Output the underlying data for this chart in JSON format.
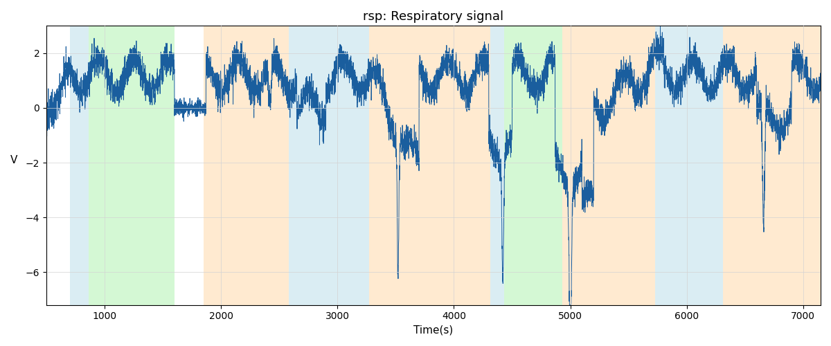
{
  "title": "rsp: Respiratory signal",
  "xlabel": "Time(s)",
  "ylabel": "V",
  "xlim": [
    500,
    7150
  ],
  "ylim": [
    -7.2,
    3.0
  ],
  "line_color": "#1a5e9e",
  "line_width": 0.7,
  "grid": true,
  "background_color": "white",
  "bands": [
    {
      "xmin": 700,
      "xmax": 860,
      "color": "#add8e6",
      "alpha": 0.45
    },
    {
      "xmin": 860,
      "xmax": 1600,
      "color": "#90ee90",
      "alpha": 0.38
    },
    {
      "xmin": 1850,
      "xmax": 2580,
      "color": "#ffd59e",
      "alpha": 0.48
    },
    {
      "xmin": 2580,
      "xmax": 3270,
      "color": "#add8e6",
      "alpha": 0.45
    },
    {
      "xmin": 3270,
      "xmax": 4310,
      "color": "#ffd59e",
      "alpha": 0.48
    },
    {
      "xmin": 4310,
      "xmax": 4430,
      "color": "#add8e6",
      "alpha": 0.45
    },
    {
      "xmin": 4430,
      "xmax": 4930,
      "color": "#90ee90",
      "alpha": 0.38
    },
    {
      "xmin": 4930,
      "xmax": 5730,
      "color": "#ffd59e",
      "alpha": 0.48
    },
    {
      "xmin": 5730,
      "xmax": 6310,
      "color": "#add8e6",
      "alpha": 0.45
    },
    {
      "xmin": 6310,
      "xmax": 7150,
      "color": "#ffd59e",
      "alpha": 0.48
    }
  ],
  "seed": 12345,
  "t_start": 500,
  "t_end": 7150
}
